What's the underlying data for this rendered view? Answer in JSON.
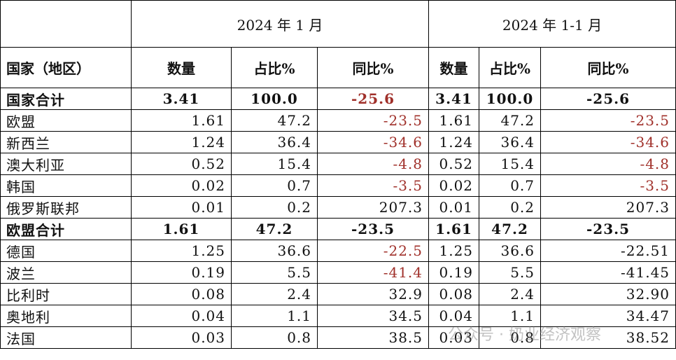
{
  "table": {
    "header": {
      "region": "国家（地区）",
      "group1": "2024 年 1 月",
      "group2": "2024 年 1-1 月",
      "sub": [
        "数量",
        "占比%",
        "同比%",
        "数量",
        "占比%",
        "同比%"
      ]
    },
    "highlight_color": "#a0302a",
    "rows": [
      {
        "cells": [
          "国家合计",
          "3.41",
          "100.0",
          "-25.6",
          "3.41",
          "100.0",
          "-25.6"
        ],
        "bold": true,
        "red_cells": [
          3
        ]
      },
      {
        "cells": [
          "欧盟",
          "1.61",
          "47.2",
          "-23.5",
          "1.61",
          "47.2",
          "-23.5"
        ],
        "bold": false,
        "red_cells": [
          3,
          6
        ]
      },
      {
        "cells": [
          "新西兰",
          "1.24",
          "36.4",
          "-34.6",
          "1.24",
          "36.4",
          "-34.6"
        ],
        "bold": false,
        "red_cells": [
          3,
          6
        ]
      },
      {
        "cells": [
          "澳大利亚",
          "0.52",
          "15.4",
          "-4.8",
          "0.52",
          "15.4",
          "-4.8"
        ],
        "bold": false,
        "red_cells": [
          3,
          6
        ]
      },
      {
        "cells": [
          "韩国",
          "0.02",
          "0.7",
          "-3.5",
          "0.02",
          "0.7",
          "-3.5"
        ],
        "bold": false,
        "red_cells": [
          3,
          6
        ]
      },
      {
        "cells": [
          "俄罗斯联邦",
          "0.01",
          "0.2",
          "207.3",
          "0.01",
          "0.2",
          "207.3"
        ],
        "bold": false,
        "red_cells": []
      },
      {
        "cells": [
          "欧盟合计",
          "1.61",
          "47.2",
          "-23.5",
          "1.61",
          "47.2",
          "-23.5"
        ],
        "bold": true,
        "red_cells": []
      },
      {
        "cells": [
          "德国",
          "1.25",
          "36.6",
          "-22.5",
          "1.25",
          "36.6",
          "-22.51"
        ],
        "bold": false,
        "red_cells": [
          3
        ]
      },
      {
        "cells": [
          "波兰",
          "0.19",
          "5.5",
          "-41.4",
          "0.19",
          "5.5",
          "-41.45"
        ],
        "bold": false,
        "red_cells": [
          3
        ]
      },
      {
        "cells": [
          "比利时",
          "0.08",
          "2.4",
          "32.9",
          "0.08",
          "2.4",
          "32.90"
        ],
        "bold": false,
        "red_cells": []
      },
      {
        "cells": [
          "奥地利",
          "0.04",
          "1.1",
          "34.5",
          "0.04",
          "1.1",
          "34.47"
        ],
        "bold": false,
        "red_cells": []
      },
      {
        "cells": [
          "法国",
          "0.03",
          "0.8",
          "38.5",
          "0.03",
          "0.8",
          "38.52"
        ],
        "bold": false,
        "red_cells": []
      }
    ]
  },
  "watermark": "公众号 · 奶业经济观察"
}
